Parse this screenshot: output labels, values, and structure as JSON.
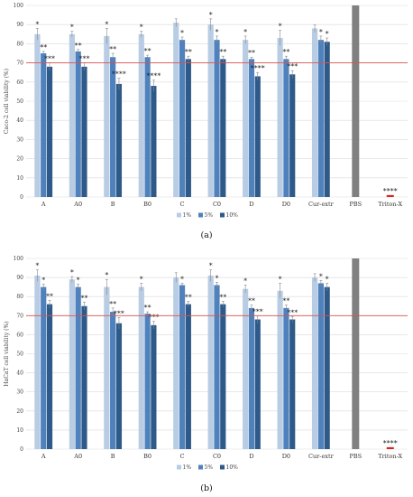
{
  "colors": {
    "s1": "#b8cce4",
    "s2": "#4f81bd",
    "s3": "#2e5a8a",
    "pbs": "#808080",
    "triton": "#e02020",
    "threshold": "#d9534f",
    "grid": "#d9d9d9"
  },
  "chart_data": [
    {
      "type": "bar",
      "panel_label": "(a)",
      "ylabel": "Caco-2 cell viability (%)",
      "ylim": [
        0,
        100
      ],
      "yticks": [
        0,
        10,
        20,
        30,
        40,
        50,
        60,
        70,
        80,
        90,
        100
      ],
      "grid": true,
      "legend_position": "bottom",
      "threshold": 70,
      "categories": [
        "A",
        "A0",
        "B",
        "B0",
        "C",
        "C0",
        "D",
        "D0",
        "Cur-extr",
        "PBS",
        "Triton-X"
      ],
      "series": [
        {
          "name": "1%",
          "values": [
            85,
            85,
            84,
            85,
            91,
            90,
            82,
            83,
            88,
            null,
            null
          ],
          "errors": [
            3,
            1.5,
            4,
            1.5,
            2,
            3,
            2,
            4,
            2,
            null,
            null
          ],
          "stars": [
            "*",
            "*",
            "*",
            "*",
            "",
            "*",
            "*",
            "*",
            "",
            "",
            ""
          ]
        },
        {
          "name": "5%",
          "values": [
            75,
            76,
            73,
            73,
            82,
            82,
            72,
            72,
            82,
            null,
            null
          ],
          "errors": [
            1,
            1,
            2,
            1,
            1.5,
            2,
            1,
            1.5,
            2,
            null,
            null
          ],
          "stars": [
            "**",
            "**",
            "**",
            "**",
            "*",
            "*",
            "**",
            "**",
            "*",
            "",
            ""
          ]
        },
        {
          "name": "10%",
          "values": [
            68,
            68,
            59,
            58,
            72,
            72,
            63,
            64,
            81,
            null,
            null
          ],
          "errors": [
            2,
            2,
            3,
            3,
            1.5,
            1.5,
            2,
            2,
            2,
            null,
            null
          ],
          "stars": [
            "***",
            "***",
            "****",
            "****",
            "**",
            "**",
            "****",
            "***",
            "*",
            "",
            ""
          ]
        }
      ],
      "single_bars": [
        {
          "category": "PBS",
          "value": 100,
          "star": ""
        },
        {
          "category": "Triton-X",
          "value": 1,
          "star": "****"
        }
      ]
    },
    {
      "type": "bar",
      "panel_label": "(b)",
      "ylabel": "HaCaT cell viability (%)",
      "ylim": [
        0,
        100
      ],
      "yticks": [
        0,
        10,
        20,
        30,
        40,
        50,
        60,
        70,
        80,
        90,
        100
      ],
      "grid": true,
      "legend_position": "bottom",
      "threshold": 70,
      "categories": [
        "A",
        "A0",
        "B",
        "B0",
        "C",
        "C0",
        "D",
        "D0",
        "Cur-extr",
        "PBS",
        "Triton-X"
      ],
      "series": [
        {
          "name": "1%",
          "values": [
            91,
            89,
            85,
            85,
            90,
            91,
            84,
            83,
            90,
            null,
            null
          ],
          "errors": [
            3,
            1.5,
            4,
            2,
            2.5,
            3,
            2,
            4,
            2,
            null,
            null
          ],
          "stars": [
            "*",
            "*",
            "*",
            "*",
            "",
            "*",
            "*",
            "*",
            "",
            "",
            ""
          ]
        },
        {
          "name": "5%",
          "values": [
            85,
            85,
            72,
            71,
            86,
            86,
            74,
            74,
            87,
            null,
            null
          ],
          "errors": [
            1.5,
            1.5,
            2,
            1,
            1,
            1.5,
            1.5,
            1.5,
            1.5,
            null,
            null
          ],
          "stars": [
            "*",
            "*",
            "**",
            "**",
            "*",
            "*",
            "**",
            "**",
            "*",
            "",
            ""
          ]
        },
        {
          "name": "10%",
          "values": [
            76,
            75,
            66,
            65,
            76,
            76,
            68,
            68,
            85,
            null,
            null
          ],
          "errors": [
            2,
            2,
            3,
            2,
            1.5,
            1.5,
            2,
            1.5,
            2,
            null,
            null
          ],
          "stars": [
            "**",
            "**",
            "***",
            "***",
            "**",
            "**",
            "***",
            "***",
            "*",
            "",
            ""
          ]
        }
      ],
      "single_bars": [
        {
          "category": "PBS",
          "value": 100,
          "star": ""
        },
        {
          "category": "Triton-X",
          "value": 1,
          "star": "****"
        }
      ]
    }
  ]
}
